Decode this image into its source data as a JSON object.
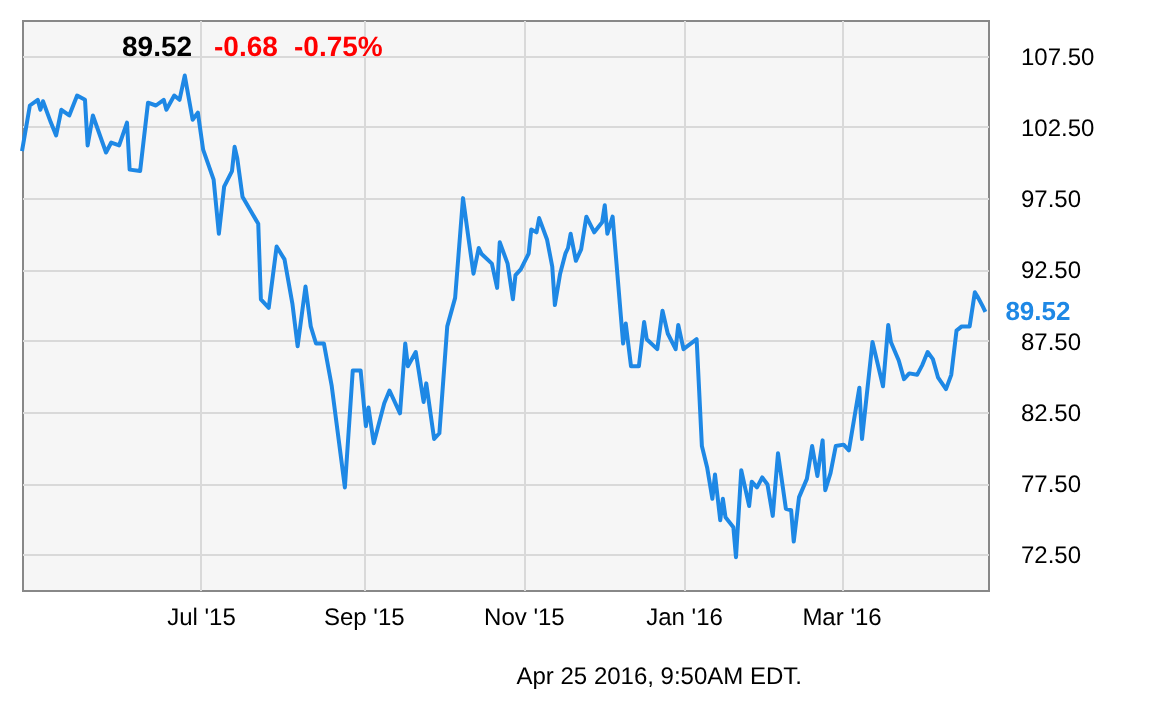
{
  "chart_data": {
    "type": "line",
    "x": [
      "2015-04-24",
      "2015-04-27",
      "2015-04-30",
      "2015-05-01",
      "2015-05-02",
      "2015-05-05",
      "2015-05-07",
      "2015-05-09",
      "2015-05-12",
      "2015-05-15",
      "2015-05-18",
      "2015-05-19",
      "2015-05-21",
      "2015-05-26",
      "2015-05-28",
      "2015-05-31",
      "2015-06-03",
      "2015-06-04",
      "2015-06-08",
      "2015-06-11",
      "2015-06-14",
      "2015-06-17",
      "2015-06-18",
      "2015-06-21",
      "2015-06-23",
      "2015-06-25",
      "2015-06-28",
      "2015-06-30",
      "2015-07-02",
      "2015-07-06",
      "2015-07-08",
      "2015-07-10",
      "2015-07-13",
      "2015-07-14",
      "2015-07-15",
      "2015-07-17",
      "2015-07-23",
      "2015-07-24",
      "2015-07-27",
      "2015-07-30",
      "2015-08-02",
      "2015-08-05",
      "2015-08-07",
      "2015-08-10",
      "2015-08-12",
      "2015-08-14",
      "2015-08-17",
      "2015-08-20",
      "2015-08-25",
      "2015-08-28",
      "2015-08-31",
      "2015-09-02",
      "2015-09-03",
      "2015-09-05",
      "2015-09-09",
      "2015-09-11",
      "2015-09-15",
      "2015-09-17",
      "2015-09-18",
      "2015-09-21",
      "2015-09-24",
      "2015-09-25",
      "2015-09-28",
      "2015-09-30",
      "2015-10-03",
      "2015-10-06",
      "2015-10-09",
      "2015-10-11",
      "2015-10-13",
      "2015-10-15",
      "2015-10-16",
      "2015-10-20",
      "2015-10-22",
      "2015-10-23",
      "2015-10-26",
      "2015-10-28",
      "2015-10-29",
      "2015-10-31",
      "2015-11-03",
      "2015-11-04",
      "2015-11-06",
      "2015-11-07",
      "2015-11-10",
      "2015-11-12",
      "2015-11-13",
      "2015-11-15",
      "2015-11-17",
      "2015-11-18",
      "2015-11-19",
      "2015-11-21",
      "2015-11-23",
      "2015-11-25",
      "2015-11-28",
      "2015-12-01",
      "2015-12-02",
      "2015-12-03",
      "2015-12-05",
      "2015-12-09",
      "2015-12-10",
      "2015-12-12",
      "2015-12-15",
      "2015-12-17",
      "2015-12-18",
      "2015-12-22",
      "2015-12-24",
      "2015-12-26",
      "2015-12-29",
      "2015-12-30",
      "2016-01-01",
      "2016-01-06",
      "2016-01-08",
      "2016-01-10",
      "2016-01-12",
      "2016-01-13",
      "2016-01-15",
      "2016-01-16",
      "2016-01-17",
      "2016-01-20",
      "2016-01-21",
      "2016-01-23",
      "2016-01-26",
      "2016-01-27",
      "2016-01-29",
      "2016-01-31",
      "2016-02-02",
      "2016-02-04",
      "2016-02-06",
      "2016-02-09",
      "2016-02-11",
      "2016-02-12",
      "2016-02-14",
      "2016-02-17",
      "2016-02-19",
      "2016-02-21",
      "2016-02-23",
      "2016-02-24",
      "2016-02-26",
      "2016-02-28",
      "2016-03-02",
      "2016-03-04",
      "2016-03-06",
      "2016-03-08",
      "2016-03-09",
      "2016-03-13",
      "2016-03-17",
      "2016-03-19",
      "2016-03-20",
      "2016-03-23",
      "2016-03-25",
      "2016-03-27",
      "2016-03-30",
      "2016-04-01",
      "2016-04-03",
      "2016-04-05",
      "2016-04-07",
      "2016-04-10",
      "2016-04-12",
      "2016-04-14",
      "2016-04-16",
      "2016-04-19",
      "2016-04-21",
      "2016-04-22",
      "2016-04-24",
      "2016-04-25"
    ],
    "series": [
      {
        "color": "#1e88e5",
        "values": [
          100.8,
          104.0,
          104.4,
          103.7,
          104.3,
          102.8,
          101.9,
          103.7,
          103.3,
          104.7,
          104.4,
          101.2,
          103.3,
          100.7,
          101.4,
          101.2,
          102.8,
          99.5,
          99.4,
          104.2,
          104.0,
          104.4,
          103.7,
          104.7,
          104.4,
          106.1,
          103.0,
          103.5,
          100.9,
          98.8,
          95.0,
          98.3,
          99.4,
          101.1,
          100.3,
          97.6,
          95.7,
          90.4,
          89.8,
          94.1,
          93.2,
          90.1,
          87.1,
          91.3,
          88.5,
          87.3,
          87.3,
          84.3,
          77.2,
          85.4,
          85.4,
          81.5,
          82.8,
          80.3,
          83.1,
          84.0,
          82.4,
          87.3,
          85.7,
          86.7,
          83.2,
          84.5,
          80.6,
          81.0,
          88.5,
          90.5,
          97.5,
          94.8,
          92.2,
          94.0,
          93.6,
          92.9,
          91.2,
          94.4,
          92.9,
          90.4,
          92.1,
          92.5,
          93.6,
          95.3,
          95.1,
          96.1,
          94.6,
          92.7,
          90.0,
          92.2,
          93.6,
          94.0,
          95.0,
          93.1,
          93.9,
          96.2,
          95.1,
          95.8,
          97.0,
          95.0,
          96.2,
          87.3,
          88.7,
          85.7,
          85.7,
          88.8,
          87.6,
          86.9,
          89.6,
          88.0,
          86.9,
          88.6,
          86.9,
          87.6,
          80.1,
          78.6,
          76.4,
          78.1,
          74.9,
          76.4,
          75.1,
          74.4,
          72.3,
          78.4,
          75.9,
          77.6,
          77.2,
          77.9,
          77.4,
          75.2,
          79.6,
          75.7,
          75.6,
          73.4,
          76.5,
          77.8,
          80.1,
          78.0,
          80.5,
          77.0,
          78.2,
          80.1,
          80.2,
          79.8,
          82.0,
          84.2,
          80.6,
          87.4,
          84.3,
          88.6,
          87.4,
          86.1,
          84.8,
          85.2,
          85.1,
          85.8,
          86.7,
          86.2,
          84.9,
          84.1,
          85.1,
          88.2,
          88.5,
          88.5,
          90.9,
          90.6,
          89.9,
          89.52
        ]
      }
    ],
    "xlim": [
      "2015-04-24",
      "2016-04-26"
    ],
    "xticks": [
      {
        "value": "2015-07-01",
        "label": "Jul '15"
      },
      {
        "value": "2015-09-01",
        "label": "Sep '15"
      },
      {
        "value": "2015-11-01",
        "label": "Nov '15"
      },
      {
        "value": "2016-01-01",
        "label": "Jan '16"
      },
      {
        "value": "2016-03-01",
        "label": "Mar '16"
      }
    ],
    "ylim": [
      70,
      110
    ],
    "yticks": [
      {
        "value": 72.5,
        "label": "72.50"
      },
      {
        "value": 77.5,
        "label": "77.50"
      },
      {
        "value": 82.5,
        "label": "82.50"
      },
      {
        "value": 87.5,
        "label": "87.50"
      },
      {
        "value": 92.5,
        "label": "92.50"
      },
      {
        "value": 97.5,
        "label": "97.50"
      },
      {
        "value": 102.5,
        "label": "102.50"
      },
      {
        "value": 107.5,
        "label": "107.50"
      }
    ],
    "grid": true,
    "annotations": [
      "89.52",
      "-0.68",
      "-0.75%",
      "Apr 25 2016, 9:50AM EDT.",
      {
        "text": "89.52",
        "x": "2016-04-25",
        "y": 89.52
      }
    ]
  }
}
